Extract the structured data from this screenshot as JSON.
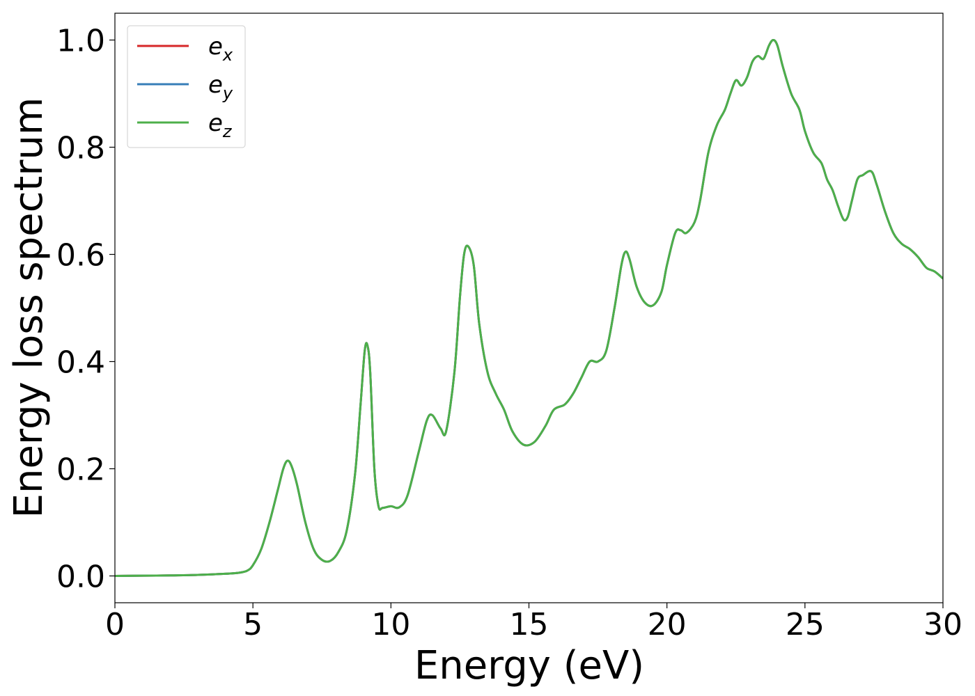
{
  "chart_data": {
    "type": "line",
    "title": "",
    "xlabel": "Energy (eV)",
    "ylabel": "Energy loss spectrum",
    "xlim": [
      0,
      30
    ],
    "ylim": [
      -0.05,
      1.05
    ],
    "xticks": [
      0,
      5,
      10,
      15,
      20,
      25,
      30
    ],
    "xtick_labels": [
      "0",
      "5",
      "10",
      "15",
      "20",
      "25",
      "30"
    ],
    "yticks": [
      0.0,
      0.2,
      0.4,
      0.6,
      0.8,
      1.0
    ],
    "ytick_labels": [
      "0.0",
      "0.2",
      "0.4",
      "0.6",
      "0.8",
      "1.0"
    ],
    "grid": false,
    "legend_position": "top-left",
    "x": [
      0,
      1,
      2,
      3,
      4,
      4.5,
      4.8,
      5.0,
      5.3,
      5.6,
      5.9,
      6.1,
      6.25,
      6.4,
      6.6,
      6.9,
      7.2,
      7.5,
      7.8,
      8.1,
      8.4,
      8.7,
      8.9,
      9.05,
      9.15,
      9.25,
      9.4,
      9.55,
      9.7,
      10.0,
      10.3,
      10.6,
      11.0,
      11.3,
      11.5,
      11.8,
      12.0,
      12.3,
      12.5,
      12.65,
      12.8,
      13.0,
      13.2,
      13.5,
      13.8,
      14.1,
      14.4,
      14.8,
      15.2,
      15.6,
      15.9,
      16.3,
      16.6,
      16.9,
      17.2,
      17.5,
      17.8,
      18.1,
      18.35,
      18.5,
      18.65,
      18.9,
      19.2,
      19.5,
      19.8,
      20.0,
      20.3,
      20.5,
      20.7,
      21.0,
      21.2,
      21.5,
      21.8,
      22.1,
      22.3,
      22.5,
      22.7,
      22.9,
      23.1,
      23.3,
      23.5,
      23.7,
      23.85,
      24.0,
      24.2,
      24.5,
      24.8,
      25.0,
      25.3,
      25.6,
      25.8,
      26.0,
      26.2,
      26.4,
      26.55,
      26.7,
      26.9,
      27.1,
      27.4,
      27.6,
      27.9,
      28.2,
      28.5,
      28.8,
      29.1,
      29.4,
      29.7,
      30.0
    ],
    "series": [
      {
        "name": "e_x",
        "label_base": "e",
        "label_sub": "x",
        "color": "#d62728",
        "values": [
          0.0,
          0.0005,
          0.001,
          0.002,
          0.004,
          0.006,
          0.01,
          0.02,
          0.05,
          0.1,
          0.16,
          0.2,
          0.215,
          0.205,
          0.17,
          0.1,
          0.05,
          0.03,
          0.028,
          0.045,
          0.085,
          0.19,
          0.32,
          0.42,
          0.43,
          0.38,
          0.2,
          0.13,
          0.127,
          0.13,
          0.128,
          0.15,
          0.23,
          0.29,
          0.3,
          0.275,
          0.27,
          0.38,
          0.52,
          0.6,
          0.615,
          0.58,
          0.47,
          0.38,
          0.34,
          0.31,
          0.27,
          0.245,
          0.25,
          0.28,
          0.31,
          0.32,
          0.34,
          0.37,
          0.4,
          0.4,
          0.42,
          0.5,
          0.58,
          0.605,
          0.59,
          0.54,
          0.51,
          0.505,
          0.53,
          0.58,
          0.64,
          0.645,
          0.64,
          0.66,
          0.7,
          0.79,
          0.84,
          0.87,
          0.9,
          0.925,
          0.915,
          0.93,
          0.96,
          0.97,
          0.965,
          0.99,
          1.0,
          0.99,
          0.95,
          0.9,
          0.87,
          0.83,
          0.79,
          0.77,
          0.74,
          0.72,
          0.69,
          0.665,
          0.67,
          0.7,
          0.74,
          0.748,
          0.755,
          0.73,
          0.68,
          0.64,
          0.62,
          0.61,
          0.595,
          0.575,
          0.568,
          0.555
        ]
      },
      {
        "name": "e_y",
        "label_base": "e",
        "label_sub": "y",
        "color": "#377eb8",
        "values": [
          0.0,
          0.0005,
          0.001,
          0.002,
          0.004,
          0.006,
          0.01,
          0.02,
          0.05,
          0.1,
          0.16,
          0.2,
          0.215,
          0.205,
          0.17,
          0.1,
          0.05,
          0.03,
          0.028,
          0.045,
          0.085,
          0.19,
          0.32,
          0.42,
          0.43,
          0.38,
          0.2,
          0.13,
          0.127,
          0.13,
          0.128,
          0.15,
          0.23,
          0.29,
          0.3,
          0.275,
          0.27,
          0.38,
          0.52,
          0.6,
          0.615,
          0.58,
          0.47,
          0.38,
          0.34,
          0.31,
          0.27,
          0.245,
          0.25,
          0.28,
          0.31,
          0.32,
          0.34,
          0.37,
          0.4,
          0.4,
          0.42,
          0.5,
          0.58,
          0.605,
          0.59,
          0.54,
          0.51,
          0.505,
          0.53,
          0.58,
          0.64,
          0.645,
          0.64,
          0.66,
          0.7,
          0.79,
          0.84,
          0.87,
          0.9,
          0.925,
          0.915,
          0.93,
          0.96,
          0.97,
          0.965,
          0.99,
          1.0,
          0.99,
          0.95,
          0.9,
          0.87,
          0.83,
          0.79,
          0.77,
          0.74,
          0.72,
          0.69,
          0.665,
          0.67,
          0.7,
          0.74,
          0.748,
          0.755,
          0.73,
          0.68,
          0.64,
          0.62,
          0.61,
          0.595,
          0.575,
          0.568,
          0.555
        ]
      },
      {
        "name": "e_z",
        "label_base": "e",
        "label_sub": "z",
        "color": "#4daf4a",
        "values": [
          0.0,
          0.0005,
          0.001,
          0.002,
          0.004,
          0.006,
          0.01,
          0.02,
          0.05,
          0.1,
          0.16,
          0.2,
          0.215,
          0.205,
          0.17,
          0.1,
          0.05,
          0.03,
          0.028,
          0.045,
          0.085,
          0.19,
          0.32,
          0.42,
          0.43,
          0.38,
          0.2,
          0.13,
          0.127,
          0.13,
          0.128,
          0.15,
          0.23,
          0.29,
          0.3,
          0.275,
          0.27,
          0.38,
          0.52,
          0.6,
          0.615,
          0.58,
          0.47,
          0.38,
          0.34,
          0.31,
          0.27,
          0.245,
          0.25,
          0.28,
          0.31,
          0.32,
          0.34,
          0.37,
          0.4,
          0.4,
          0.42,
          0.5,
          0.58,
          0.605,
          0.59,
          0.54,
          0.51,
          0.505,
          0.53,
          0.58,
          0.64,
          0.645,
          0.64,
          0.66,
          0.7,
          0.79,
          0.84,
          0.87,
          0.9,
          0.925,
          0.915,
          0.93,
          0.96,
          0.97,
          0.965,
          0.99,
          1.0,
          0.99,
          0.95,
          0.9,
          0.87,
          0.83,
          0.79,
          0.77,
          0.74,
          0.72,
          0.69,
          0.665,
          0.67,
          0.7,
          0.74,
          0.748,
          0.755,
          0.73,
          0.68,
          0.64,
          0.62,
          0.61,
          0.595,
          0.575,
          0.568,
          0.555
        ]
      }
    ]
  }
}
